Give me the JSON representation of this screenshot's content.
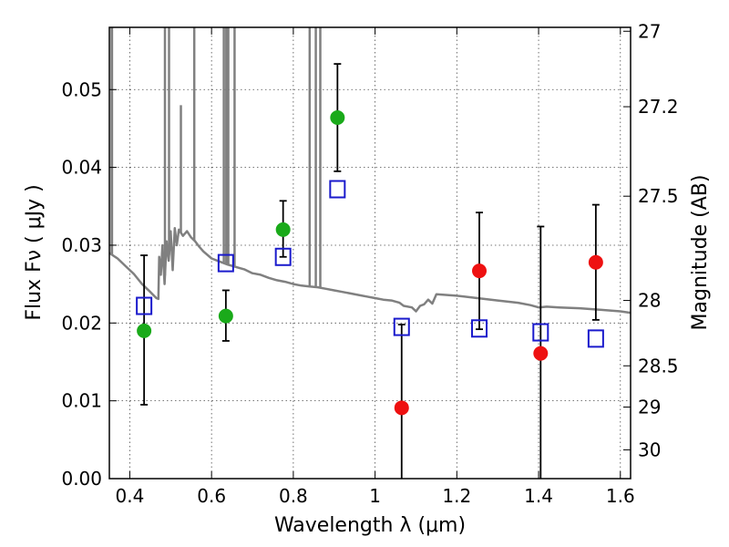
{
  "chart_data": {
    "type": "scatter",
    "title": "",
    "xlabel": "Wavelength  λ (μm)",
    "ylabel": "Flux  Fν  ( μJy )",
    "y2label": "Magnitude (AB)",
    "xlim": [
      0.35,
      1.625
    ],
    "ylim": [
      0.0,
      0.058
    ],
    "grid": true,
    "x_ticks": [
      0.4,
      0.6,
      0.8,
      1.0,
      1.2,
      1.4,
      1.6
    ],
    "x_tick_labels": [
      "0.4",
      "0.6",
      "0.8",
      "1",
      "1.2",
      "1.4",
      "1.6"
    ],
    "y_ticks": [
      0.0,
      0.01,
      0.02,
      0.03,
      0.04,
      0.05
    ],
    "y_tick_labels": [
      "0.00",
      "0.01",
      "0.02",
      "0.03",
      "0.04",
      "0.05"
    ],
    "y2_ticks": [
      {
        "flux": 0.0575,
        "label": "27"
      },
      {
        "flux": 0.0478,
        "label": "27.2"
      },
      {
        "flux": 0.0363,
        "label": "27.5"
      },
      {
        "flux": 0.0229,
        "label": "28"
      },
      {
        "flux": 0.0145,
        "label": "28.5"
      },
      {
        "flux": 0.0092,
        "label": "29"
      },
      {
        "flux": 0.0037,
        "label": "30"
      }
    ],
    "series": [
      {
        "marker": "circle",
        "color": "#1aaa1a",
        "points": [
          {
            "x": 0.435,
            "y": 0.019,
            "err_lo": 0.0095,
            "err_hi": 0.0287
          },
          {
            "x": 0.635,
            "y": 0.0209,
            "err_lo": 0.0177,
            "err_hi": 0.0242
          },
          {
            "x": 0.775,
            "y": 0.032,
            "err_lo": 0.0285,
            "err_hi": 0.0357
          },
          {
            "x": 0.908,
            "y": 0.0464,
            "err_lo": 0.0395,
            "err_hi": 0.0533
          }
        ]
      },
      {
        "marker": "circle",
        "color": "#ee1111",
        "points": [
          {
            "x": 1.065,
            "y": 0.0091,
            "err_lo": 0.0,
            "err_hi": 0.0198
          },
          {
            "x": 1.255,
            "y": 0.0267,
            "err_lo": 0.0192,
            "err_hi": 0.0342
          },
          {
            "x": 1.405,
            "y": 0.0161,
            "err_lo": 0.0,
            "err_hi": 0.0324
          },
          {
            "x": 1.54,
            "y": 0.0278,
            "err_lo": 0.0204,
            "err_hi": 0.0352
          }
        ]
      },
      {
        "marker": "square-open",
        "color": "#1a1acc",
        "points": [
          {
            "x": 0.435,
            "y": 0.0222
          },
          {
            "x": 0.635,
            "y": 0.0277
          },
          {
            "x": 0.775,
            "y": 0.0285
          },
          {
            "x": 0.908,
            "y": 0.0372
          },
          {
            "x": 1.065,
            "y": 0.0195
          },
          {
            "x": 1.255,
            "y": 0.0193
          },
          {
            "x": 1.405,
            "y": 0.0188
          },
          {
            "x": 1.54,
            "y": 0.018
          }
        ]
      },
      {
        "marker": "line",
        "color": "#808080",
        "points": [
          [
            0.35,
            0.029
          ],
          [
            0.37,
            0.0283
          ],
          [
            0.39,
            0.0273
          ],
          [
            0.41,
            0.0263
          ],
          [
            0.43,
            0.025
          ],
          [
            0.45,
            0.024
          ],
          [
            0.465,
            0.0232
          ],
          [
            0.47,
            0.0231
          ],
          [
            0.472,
            0.0285
          ],
          [
            0.476,
            0.0262
          ],
          [
            0.48,
            0.03
          ],
          [
            0.485,
            0.025
          ],
          [
            0.49,
            0.0305
          ],
          [
            0.495,
            0.028
          ],
          [
            0.5,
            0.0318
          ],
          [
            0.505,
            0.0268
          ],
          [
            0.51,
            0.0322
          ],
          [
            0.515,
            0.03
          ],
          [
            0.52,
            0.032
          ],
          [
            0.53,
            0.0312
          ],
          [
            0.54,
            0.0318
          ],
          [
            0.55,
            0.031
          ],
          [
            0.56,
            0.0305
          ],
          [
            0.57,
            0.0298
          ],
          [
            0.58,
            0.0292
          ],
          [
            0.6,
            0.0283
          ],
          [
            0.62,
            0.0279
          ],
          [
            0.64,
            0.0275
          ],
          [
            0.66,
            0.0272
          ],
          [
            0.68,
            0.0269
          ],
          [
            0.7,
            0.0264
          ],
          [
            0.72,
            0.0262
          ],
          [
            0.74,
            0.0258
          ],
          [
            0.76,
            0.0255
          ],
          [
            0.78,
            0.0253
          ],
          [
            0.8,
            0.025
          ],
          [
            0.82,
            0.0248
          ],
          [
            0.84,
            0.0247
          ],
          [
            0.86,
            0.0246
          ],
          [
            0.88,
            0.0244
          ],
          [
            0.9,
            0.0242
          ],
          [
            0.92,
            0.024
          ],
          [
            0.94,
            0.0238
          ],
          [
            0.96,
            0.0236
          ],
          [
            0.98,
            0.0234
          ],
          [
            1.0,
            0.0232
          ],
          [
            1.02,
            0.023
          ],
          [
            1.04,
            0.0229
          ],
          [
            1.06,
            0.0226
          ],
          [
            1.07,
            0.0222
          ],
          [
            1.09,
            0.022
          ],
          [
            1.1,
            0.0215
          ],
          [
            1.11,
            0.0222
          ],
          [
            1.12,
            0.0224
          ],
          [
            1.13,
            0.023
          ],
          [
            1.14,
            0.0225
          ],
          [
            1.15,
            0.0237
          ],
          [
            1.2,
            0.0235
          ],
          [
            1.25,
            0.0232
          ],
          [
            1.3,
            0.0229
          ],
          [
            1.35,
            0.0226
          ],
          [
            1.38,
            0.0223
          ],
          [
            1.4,
            0.022
          ],
          [
            1.42,
            0.0221
          ],
          [
            1.45,
            0.022
          ],
          [
            1.5,
            0.0219
          ],
          [
            1.55,
            0.0217
          ],
          [
            1.6,
            0.0215
          ],
          [
            1.625,
            0.0213
          ]
        ],
        "spikes": [
          {
            "x": 0.3555,
            "y": 0.058
          },
          {
            "x": 0.3565,
            "y": 0.058
          },
          {
            "x": 0.486,
            "y": 0.058
          },
          {
            "x": 0.496,
            "y": 0.058
          },
          {
            "x": 0.525,
            "y": 0.048
          },
          {
            "x": 0.5577,
            "y": 0.058
          },
          {
            "x": 0.63,
            "y": 0.058
          },
          {
            "x": 0.636,
            "y": 0.058
          },
          {
            "x": 0.641,
            "y": 0.058
          },
          {
            "x": 0.6563,
            "y": 0.058
          },
          {
            "x": 0.84,
            "y": 0.058
          },
          {
            "x": 0.855,
            "y": 0.058
          },
          {
            "x": 0.866,
            "y": 0.058
          }
        ]
      }
    ]
  }
}
